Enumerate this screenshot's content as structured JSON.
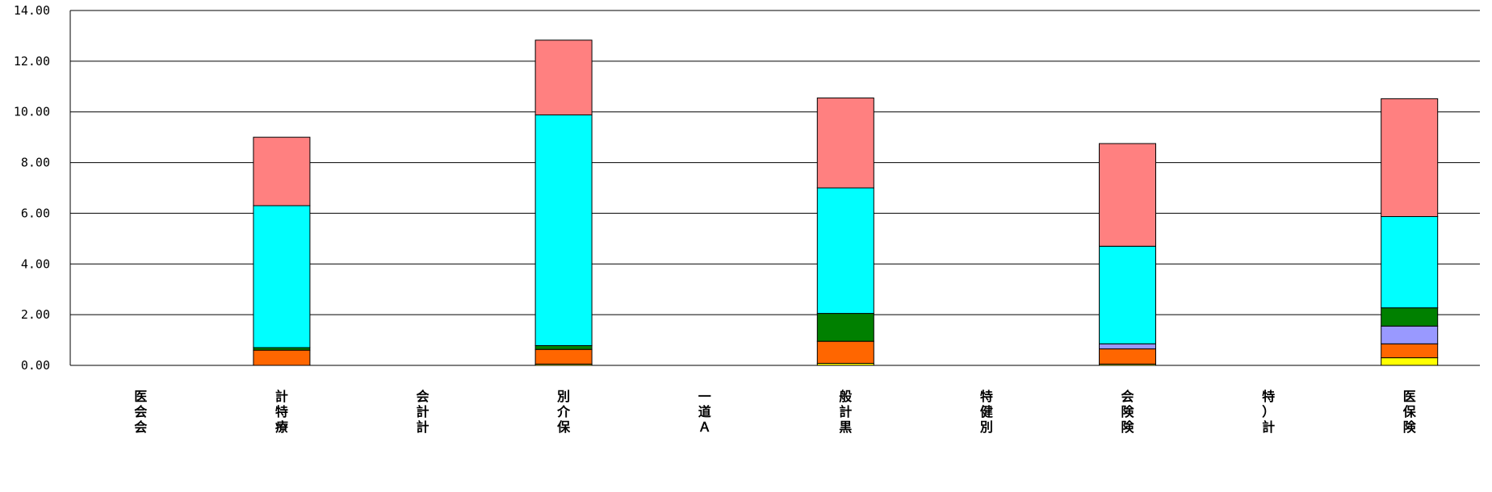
{
  "chart_data": {
    "type": "bar",
    "stacked": true,
    "grid": true,
    "ylim": [
      0,
      14
    ],
    "yticks": [
      "0.00",
      "2.00",
      "4.00",
      "6.00",
      "8.00",
      "10.00",
      "12.00",
      "14.00"
    ],
    "ytick_values": [
      0,
      2,
      4,
      6,
      8,
      10,
      12,
      14
    ],
    "categories": [
      "医会会",
      "計特療",
      "会計計",
      "別介保",
      "一道Ａ",
      "般計黒",
      "特健別",
      "会険険",
      "特）計",
      "医保険"
    ],
    "series": [
      {
        "color": "#ffff00",
        "values": [
          0,
          0,
          0,
          0.05,
          0,
          0.08,
          0,
          0.05,
          0,
          0.3
        ]
      },
      {
        "color": "#ff6600",
        "values": [
          0,
          0.6,
          0,
          0.58,
          0,
          0.87,
          0,
          0.6,
          0,
          0.55
        ]
      },
      {
        "color": "#9999ff",
        "values": [
          0,
          0,
          0,
          0,
          0,
          0,
          0,
          0.2,
          0,
          0.7
        ]
      },
      {
        "color": "#008000",
        "values": [
          0,
          0.1,
          0,
          0.15,
          0,
          1.1,
          0,
          0,
          0,
          0.72
        ]
      },
      {
        "color": "#00ffff",
        "values": [
          0,
          5.6,
          0,
          9.1,
          0,
          4.95,
          0,
          3.85,
          0,
          3.6
        ]
      },
      {
        "color": "#ff8080",
        "values": [
          0,
          2.7,
          0,
          2.95,
          0,
          3.55,
          0,
          4.05,
          0,
          4.65
        ]
      }
    ]
  }
}
